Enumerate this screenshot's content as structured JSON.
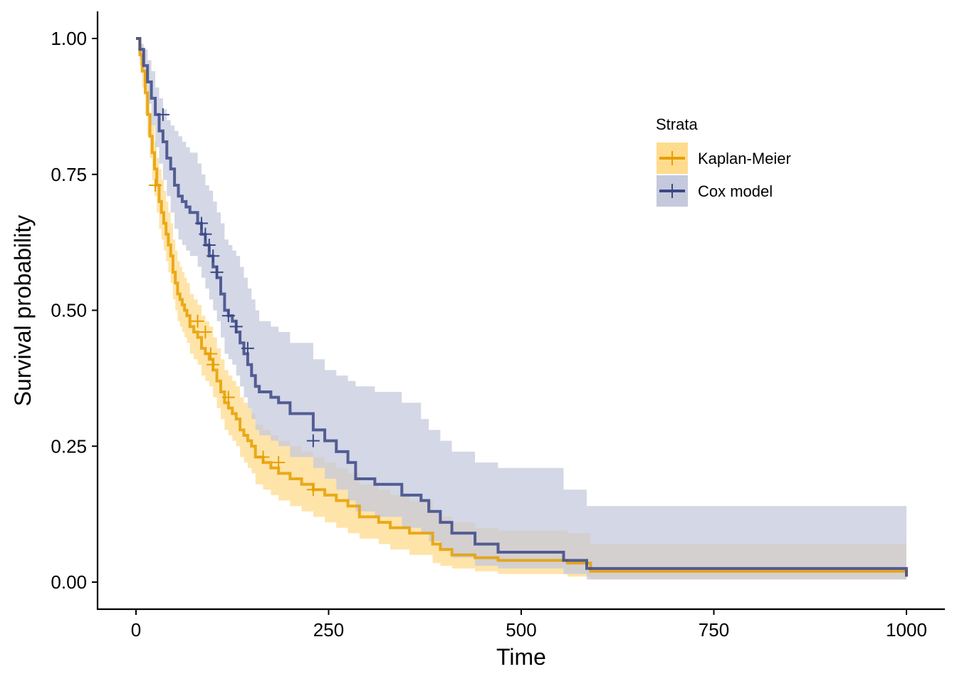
{
  "chart_data": {
    "type": "line",
    "xlabel": "Time",
    "ylabel": "Survival probability",
    "xlim": [
      0,
      1000
    ],
    "ylim": [
      0,
      1
    ],
    "x_ticks": [
      0,
      250,
      500,
      750,
      1000
    ],
    "x_tick_labels": [
      "0",
      "250",
      "500",
      "750",
      "1000"
    ],
    "y_ticks": [
      0,
      0.25,
      0.5,
      0.75,
      1.0
    ],
    "y_tick_labels": [
      "0.00",
      "0.25",
      "0.50",
      "0.75",
      "1.00"
    ],
    "grid": false,
    "legend": {
      "title": "Strata",
      "placement": "top-right"
    },
    "series": [
      {
        "name": "Kaplan-Meier",
        "color": "#E69F00",
        "band_color": "#FFDB8E",
        "step": true,
        "x": [
          0,
          5,
          8,
          12,
          15,
          18,
          21,
          24,
          27,
          30,
          33,
          36,
          39,
          42,
          45,
          48,
          51,
          54,
          57,
          60,
          63,
          66,
          70,
          75,
          80,
          85,
          90,
          95,
          100,
          105,
          110,
          115,
          120,
          125,
          130,
          135,
          140,
          145,
          150,
          155,
          165,
          175,
          185,
          200,
          215,
          230,
          245,
          260,
          275,
          290,
          315,
          330,
          355,
          385,
          395,
          410,
          440,
          470,
          560,
          590,
          990,
          1000
        ],
        "y": [
          1.0,
          0.97,
          0.94,
          0.9,
          0.86,
          0.82,
          0.79,
          0.76,
          0.73,
          0.7,
          0.68,
          0.66,
          0.64,
          0.62,
          0.6,
          0.57,
          0.55,
          0.53,
          0.52,
          0.51,
          0.5,
          0.49,
          0.47,
          0.46,
          0.45,
          0.43,
          0.42,
          0.41,
          0.39,
          0.37,
          0.35,
          0.33,
          0.32,
          0.31,
          0.3,
          0.28,
          0.27,
          0.26,
          0.25,
          0.23,
          0.22,
          0.21,
          0.2,
          0.19,
          0.18,
          0.17,
          0.16,
          0.15,
          0.14,
          0.12,
          0.11,
          0.1,
          0.09,
          0.07,
          0.06,
          0.05,
          0.045,
          0.04,
          0.035,
          0.02,
          0.02,
          0.01
        ],
        "lower": [
          1.0,
          0.95,
          0.91,
          0.86,
          0.82,
          0.78,
          0.74,
          0.71,
          0.68,
          0.65,
          0.63,
          0.61,
          0.59,
          0.57,
          0.55,
          0.52,
          0.5,
          0.48,
          0.47,
          0.46,
          0.45,
          0.44,
          0.42,
          0.41,
          0.4,
          0.38,
          0.37,
          0.36,
          0.34,
          0.32,
          0.3,
          0.28,
          0.27,
          0.26,
          0.25,
          0.23,
          0.22,
          0.21,
          0.2,
          0.18,
          0.17,
          0.16,
          0.15,
          0.14,
          0.13,
          0.12,
          0.11,
          0.1,
          0.09,
          0.08,
          0.07,
          0.06,
          0.05,
          0.035,
          0.03,
          0.025,
          0.02,
          0.015,
          0.01,
          0.005,
          0.005,
          0.0
        ],
        "upper": [
          1.0,
          0.99,
          0.97,
          0.94,
          0.9,
          0.86,
          0.84,
          0.81,
          0.78,
          0.76,
          0.74,
          0.72,
          0.7,
          0.68,
          0.66,
          0.63,
          0.61,
          0.59,
          0.58,
          0.57,
          0.56,
          0.55,
          0.53,
          0.52,
          0.51,
          0.49,
          0.48,
          0.47,
          0.45,
          0.43,
          0.41,
          0.39,
          0.38,
          0.37,
          0.36,
          0.34,
          0.33,
          0.32,
          0.31,
          0.29,
          0.28,
          0.27,
          0.26,
          0.25,
          0.24,
          0.23,
          0.22,
          0.21,
          0.2,
          0.18,
          0.17,
          0.16,
          0.15,
          0.13,
          0.12,
          0.11,
          0.1,
          0.095,
          0.09,
          0.07,
          0.07,
          0.06
        ],
        "censor_x": [
          25,
          80,
          90,
          97,
          100,
          120,
          165,
          185,
          230
        ],
        "censor_y": [
          0.73,
          0.48,
          0.46,
          0.42,
          0.4,
          0.34,
          0.23,
          0.22,
          0.17
        ]
      },
      {
        "name": "Cox model",
        "color": "#3B4887",
        "band_color": "#C5C9DC",
        "step": true,
        "x": [
          0,
          5,
          10,
          15,
          20,
          25,
          30,
          35,
          40,
          45,
          50,
          55,
          60,
          65,
          70,
          80,
          85,
          90,
          95,
          100,
          105,
          110,
          115,
          120,
          125,
          130,
          135,
          140,
          145,
          150,
          155,
          160,
          175,
          185,
          200,
          230,
          245,
          260,
          275,
          285,
          310,
          345,
          370,
          380,
          395,
          410,
          440,
          470,
          555,
          585,
          990,
          1000
        ],
        "y": [
          1.0,
          0.98,
          0.95,
          0.92,
          0.89,
          0.86,
          0.83,
          0.81,
          0.78,
          0.76,
          0.73,
          0.71,
          0.7,
          0.69,
          0.68,
          0.66,
          0.64,
          0.62,
          0.6,
          0.58,
          0.56,
          0.53,
          0.5,
          0.49,
          0.48,
          0.46,
          0.44,
          0.42,
          0.4,
          0.38,
          0.36,
          0.35,
          0.34,
          0.33,
          0.31,
          0.28,
          0.26,
          0.24,
          0.22,
          0.19,
          0.18,
          0.16,
          0.15,
          0.13,
          0.11,
          0.09,
          0.07,
          0.055,
          0.04,
          0.025,
          0.025,
          0.01
        ],
        "lower": [
          1.0,
          0.96,
          0.92,
          0.88,
          0.84,
          0.8,
          0.77,
          0.74,
          0.71,
          0.68,
          0.65,
          0.63,
          0.62,
          0.61,
          0.6,
          0.58,
          0.56,
          0.54,
          0.52,
          0.5,
          0.48,
          0.45,
          0.42,
          0.41,
          0.4,
          0.38,
          0.36,
          0.34,
          0.32,
          0.3,
          0.28,
          0.27,
          0.26,
          0.25,
          0.23,
          0.21,
          0.19,
          0.17,
          0.15,
          0.13,
          0.12,
          0.1,
          0.09,
          0.075,
          0.06,
          0.045,
          0.03,
          0.025,
          0.015,
          0.005,
          0.005,
          0.0
        ],
        "upper": [
          1.0,
          0.99,
          0.98,
          0.96,
          0.94,
          0.91,
          0.89,
          0.87,
          0.85,
          0.84,
          0.83,
          0.82,
          0.81,
          0.8,
          0.79,
          0.77,
          0.75,
          0.73,
          0.72,
          0.7,
          0.68,
          0.66,
          0.63,
          0.62,
          0.61,
          0.6,
          0.58,
          0.56,
          0.54,
          0.52,
          0.5,
          0.48,
          0.47,
          0.46,
          0.44,
          0.41,
          0.39,
          0.38,
          0.37,
          0.36,
          0.35,
          0.33,
          0.3,
          0.28,
          0.26,
          0.24,
          0.22,
          0.21,
          0.17,
          0.14,
          0.14,
          0.14
        ],
        "censor_x": [
          35,
          85,
          90,
          95,
          100,
          105,
          120,
          130,
          145,
          230
        ],
        "censor_y": [
          0.86,
          0.66,
          0.64,
          0.62,
          0.6,
          0.57,
          0.49,
          0.47,
          0.43,
          0.26
        ]
      }
    ]
  }
}
